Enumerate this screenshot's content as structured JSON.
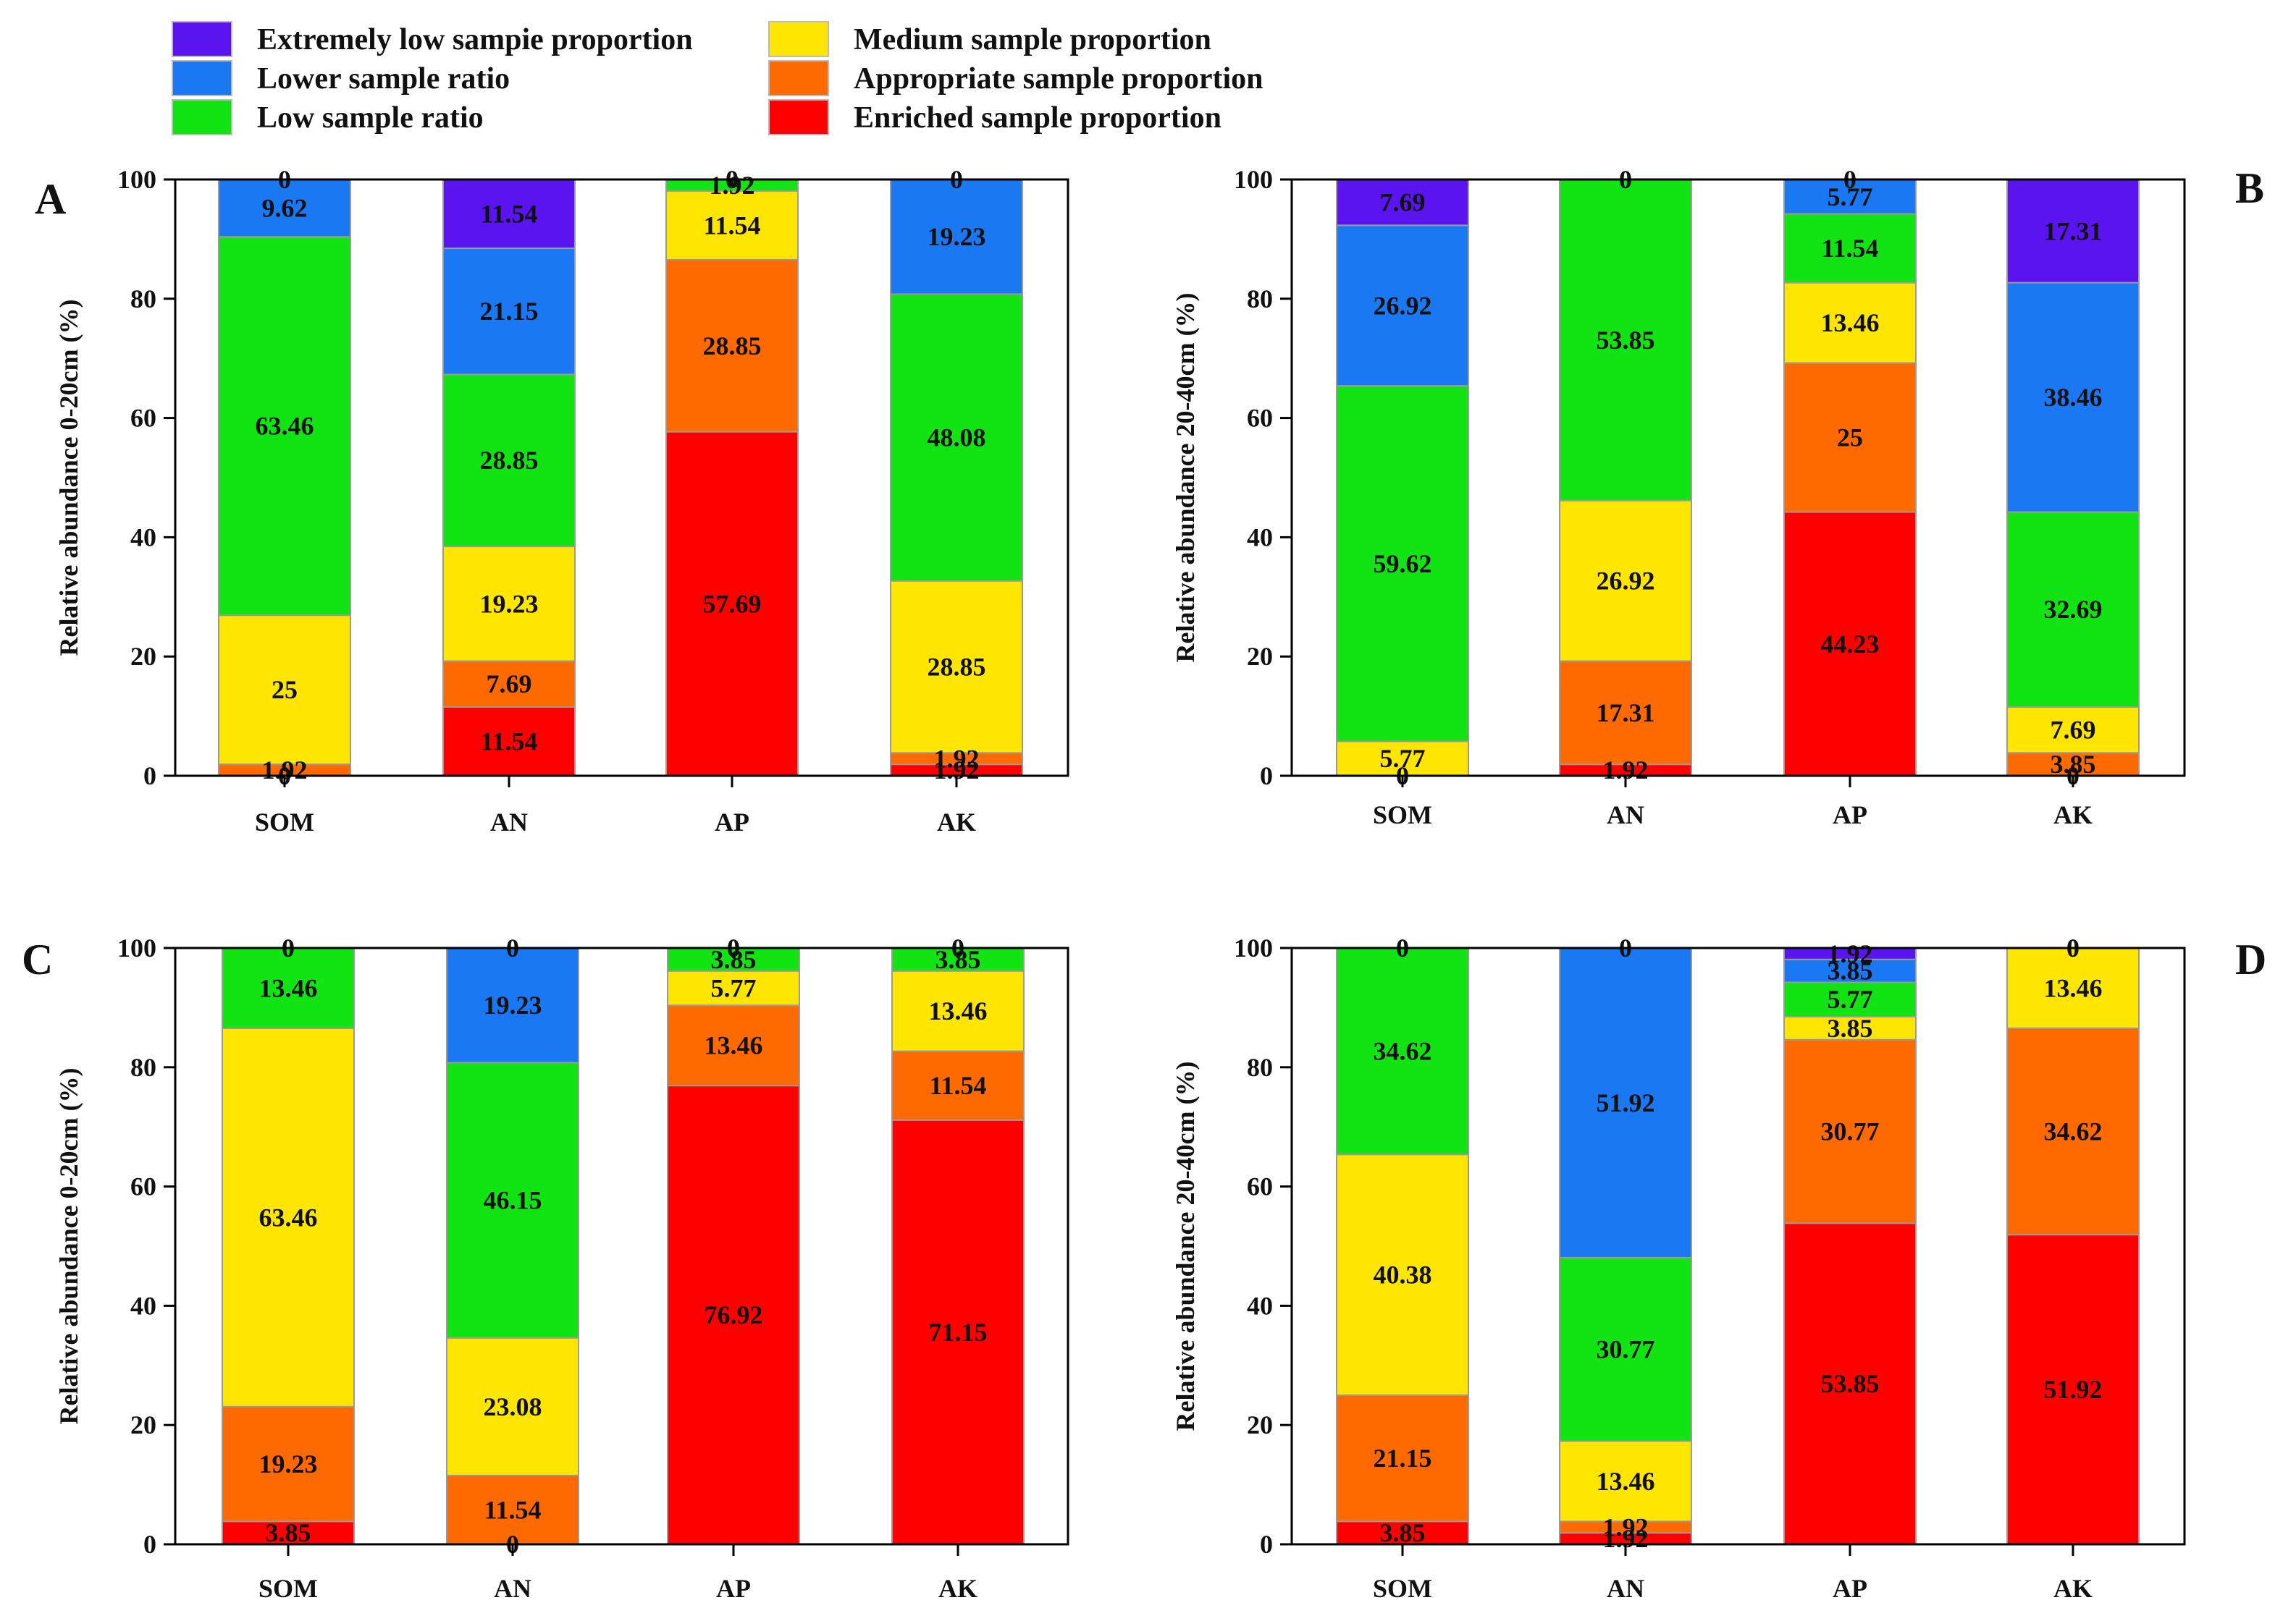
{
  "legend": [
    {
      "label": "Extremely low sampie proportion",
      "color": "#5a14f0"
    },
    {
      "label": "Lower sample ratio",
      "color": "#1a78f2"
    },
    {
      "label": "Low sample ratio",
      "color": "#12e312"
    },
    {
      "label": "Medium sample proportion",
      "color": "#ffe600"
    },
    {
      "label": "Appropriate sample proportion",
      "color": "#ff6a00"
    },
    {
      "label": "Enriched sample proportion",
      "color": "#ff0000"
    }
  ],
  "chart_data": [
    {
      "type": "bar",
      "stacked": true,
      "panel": "A",
      "ylabel": "Relative abundance 0-20cm (%)",
      "ylim": [
        0,
        100
      ],
      "yticks": [
        "0",
        "20",
        "40",
        "60",
        "80",
        "100"
      ],
      "categories": [
        "SOM",
        "AN",
        "AP",
        "AK"
      ],
      "series": [
        {
          "name": "Enriched sample proportion",
          "values": [
            0,
            11.54,
            57.69,
            1.92
          ],
          "labels": [
            "0",
            "11.54",
            "57.69",
            "1.92"
          ]
        },
        {
          "name": "Appropriate sample proportion",
          "values": [
            1.92,
            7.69,
            28.85,
            1.92
          ],
          "labels": [
            "1.92",
            "7.69",
            "28.85",
            "1.92"
          ]
        },
        {
          "name": "Medium sample proportion",
          "values": [
            25,
            19.23,
            11.54,
            28.85
          ],
          "labels": [
            "25",
            "19.23",
            "11.54",
            "28.85"
          ]
        },
        {
          "name": "Low sample ratio",
          "values": [
            63.46,
            28.85,
            1.92,
            48.08
          ],
          "labels": [
            "63.46",
            "28.85",
            "1.92",
            "48.08"
          ]
        },
        {
          "name": "Lower sample ratio",
          "values": [
            9.62,
            21.15,
            0,
            19.23
          ],
          "labels": [
            "9.62",
            "21.15",
            "0",
            "19.23"
          ]
        },
        {
          "name": "Extremely low sampie proportion",
          "values": [
            0,
            11.54,
            0,
            0
          ],
          "labels": [
            "0",
            "11.54",
            "0",
            "0"
          ]
        }
      ]
    },
    {
      "type": "bar",
      "stacked": true,
      "panel": "B",
      "ylabel": "Relative abundance 20-40cm (%)",
      "ylim": [
        0,
        100
      ],
      "yticks": [
        "0",
        "20",
        "40",
        "60",
        "80",
        "100"
      ],
      "categories": [
        "SOM",
        "AN",
        "AP",
        "AK"
      ],
      "series": [
        {
          "name": "Enriched sample proportion",
          "values": [
            0,
            1.92,
            44.23,
            0
          ],
          "labels": [
            "0",
            "1.92",
            "44.23",
            "0"
          ]
        },
        {
          "name": "Appropriate sample proportion",
          "values": [
            0,
            17.31,
            25,
            3.85
          ],
          "labels": [
            "0",
            "17.31",
            "25",
            "3.85"
          ]
        },
        {
          "name": "Medium sample proportion",
          "values": [
            5.77,
            26.92,
            13.46,
            7.69
          ],
          "labels": [
            "5.77",
            "26.92",
            "13.46",
            "7.69"
          ]
        },
        {
          "name": "Low sample ratio",
          "values": [
            59.62,
            53.85,
            11.54,
            32.69
          ],
          "labels": [
            "59.62",
            "53.85",
            "11.54",
            "32.69"
          ]
        },
        {
          "name": "Lower sample ratio",
          "values": [
            26.92,
            0,
            5.77,
            38.46
          ],
          "labels": [
            "26.92",
            "0",
            "5.77",
            "38.46"
          ]
        },
        {
          "name": "Extremely low sampie proportion",
          "values": [
            7.69,
            0,
            0,
            17.31
          ],
          "labels": [
            "7.69",
            "0",
            "0",
            "17.31"
          ]
        }
      ]
    },
    {
      "type": "bar",
      "stacked": true,
      "panel": "C",
      "ylabel": "Relative abundance 0-20cm (%)",
      "ylim": [
        0,
        100
      ],
      "yticks": [
        "0",
        "20",
        "40",
        "60",
        "80",
        "100"
      ],
      "categories": [
        "SOM",
        "AN",
        "AP",
        "AK"
      ],
      "series": [
        {
          "name": "Enriched sample proportion",
          "values": [
            3.85,
            0,
            76.92,
            71.15
          ],
          "labels": [
            "3.85",
            "0",
            "76.92",
            "71.15"
          ]
        },
        {
          "name": "Appropriate sample proportion",
          "values": [
            19.23,
            11.54,
            13.46,
            11.54
          ],
          "labels": [
            "19.23",
            "11.54",
            "13.46",
            "11.54"
          ]
        },
        {
          "name": "Medium sample proportion",
          "values": [
            63.46,
            23.08,
            5.77,
            13.46
          ],
          "labels": [
            "63.46",
            "23.08",
            "5.77",
            "13.46"
          ]
        },
        {
          "name": "Low sample ratio",
          "values": [
            13.46,
            46.15,
            3.85,
            3.85
          ],
          "labels": [
            "13.46",
            "46.15",
            "3.85",
            "3.85"
          ]
        },
        {
          "name": "Lower sample ratio",
          "values": [
            0,
            19.23,
            0,
            0
          ],
          "labels": [
            "0",
            "19.23",
            "0",
            "0"
          ]
        },
        {
          "name": "Extremely low sampie proportion",
          "values": [
            0,
            0,
            0,
            0
          ],
          "labels": [
            "0",
            "0",
            "0",
            "0"
          ]
        }
      ]
    },
    {
      "type": "bar",
      "stacked": true,
      "panel": "D",
      "ylabel": "Relative abundance 20-40cm (%)",
      "ylim": [
        0,
        100
      ],
      "yticks": [
        "0",
        "20",
        "40",
        "60",
        "80",
        "100"
      ],
      "categories": [
        "SOM",
        "AN",
        "AP",
        "AK"
      ],
      "series": [
        {
          "name": "Enriched sample proportion",
          "values": [
            3.85,
            1.92,
            53.85,
            51.92
          ],
          "labels": [
            "3.85",
            "1.92",
            "53.85",
            "51.92"
          ]
        },
        {
          "name": "Appropriate sample proportion",
          "values": [
            21.15,
            1.92,
            30.77,
            34.62
          ],
          "labels": [
            "21.15",
            "1.92",
            "30.77",
            "34.62"
          ]
        },
        {
          "name": "Medium sample proportion",
          "values": [
            40.38,
            13.46,
            3.85,
            13.46
          ],
          "labels": [
            "40.38",
            "13.46",
            "3.85",
            "13.46"
          ]
        },
        {
          "name": "Low sample ratio",
          "values": [
            34.62,
            30.77,
            5.77,
            0
          ],
          "labels": [
            "34.62",
            "30.77",
            "5.77",
            "0"
          ]
        },
        {
          "name": "Lower sample ratio",
          "values": [
            0,
            51.92,
            3.85,
            0
          ],
          "labels": [
            "0",
            "51.92",
            "3.85",
            "0"
          ]
        },
        {
          "name": "Extremely low sampie proportion",
          "values": [
            0,
            0,
            1.92,
            0
          ],
          "labels": [
            "0",
            "0",
            "1.92",
            "0"
          ]
        }
      ]
    }
  ]
}
